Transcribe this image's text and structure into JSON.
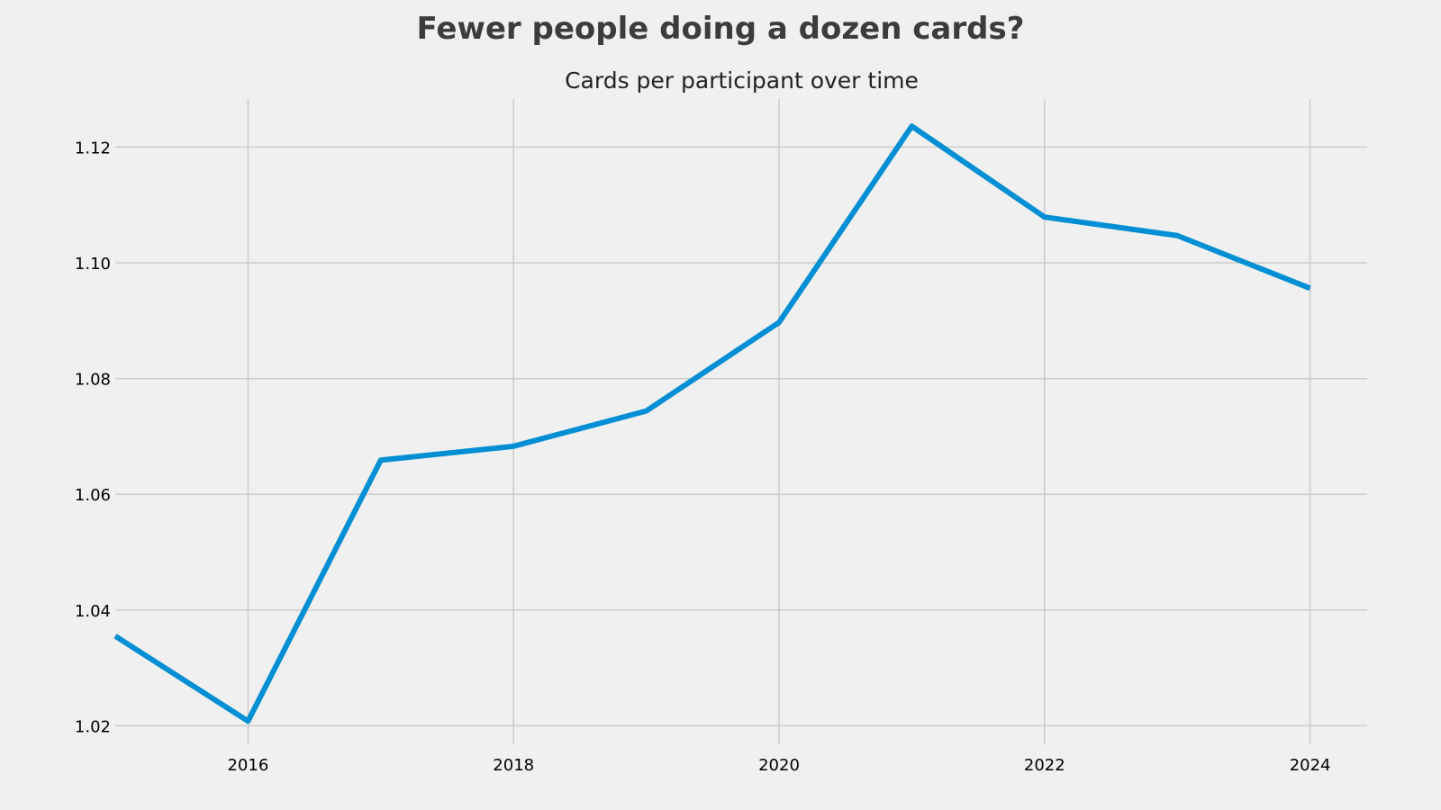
{
  "suptitle": "Fewer people doing a dozen cards?",
  "chart_data": {
    "type": "line",
    "title": "Cards per participant over time",
    "xlabel": "",
    "ylabel": "",
    "x": [
      2015,
      2016,
      2017,
      2018,
      2019,
      2020,
      2021,
      2022,
      2023,
      2024
    ],
    "series": [
      {
        "values": [
          1.0355,
          1.0208,
          1.0659,
          1.0683,
          1.0744,
          1.0897,
          1.1236,
          1.1079,
          1.1047,
          1.0956
        ],
        "color": "#008fd5"
      }
    ],
    "xlim": [
      2015,
      2024.43
    ],
    "ylim": [
      1.0168,
      1.1283
    ],
    "x_ticks": [
      "2016",
      "2018",
      "2020",
      "2022",
      "2024"
    ],
    "y_ticks": [
      "1.02",
      "1.04",
      "1.06",
      "1.08",
      "1.10",
      "1.12"
    ],
    "grid": true,
    "colors": {
      "background": "#f0f0f0",
      "grid": "#cbcbcb",
      "line": "#008fd5"
    }
  }
}
